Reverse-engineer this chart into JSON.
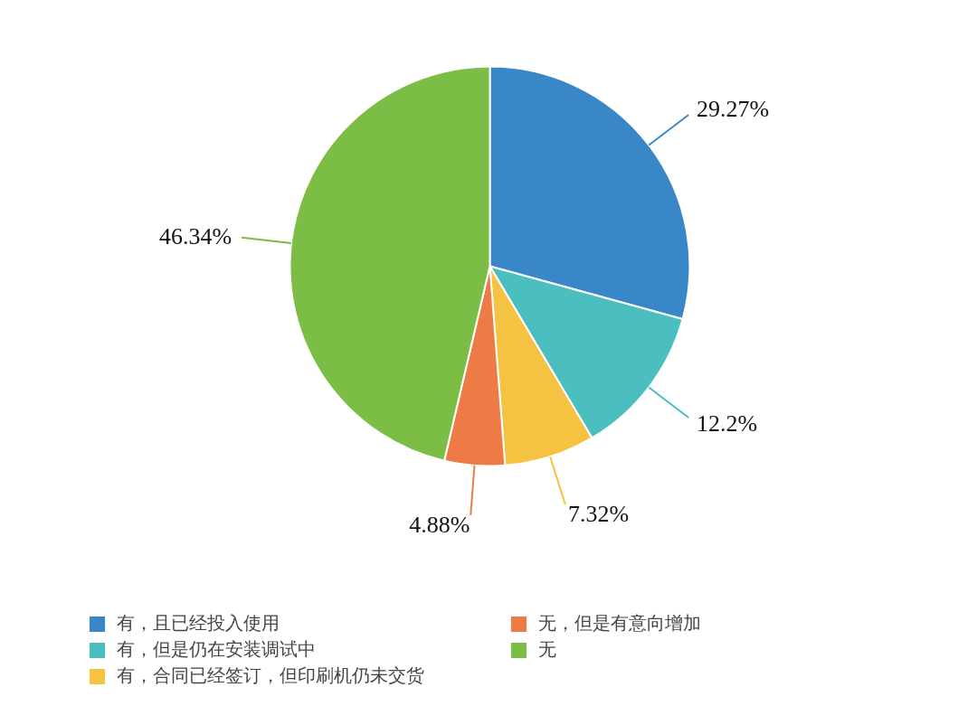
{
  "chart_data": {
    "type": "pie",
    "categories": [
      "有，且已经投入使用",
      "有，但是仍在安装调试中",
      "有，合同已经签订，但印刷机仍未交货",
      "无，但是有意向增加",
      "无"
    ],
    "values": [
      29.27,
      12.2,
      7.32,
      4.88,
      46.34
    ],
    "colors": [
      "#3a87c8",
      "#4bbfbf",
      "#f5c242",
      "#ee7b45",
      "#7bbd45"
    ],
    "value_labels": [
      "29.27%",
      "12.2%",
      "7.32%",
      "4.88%",
      "46.34%"
    ],
    "legend": "bottom"
  }
}
